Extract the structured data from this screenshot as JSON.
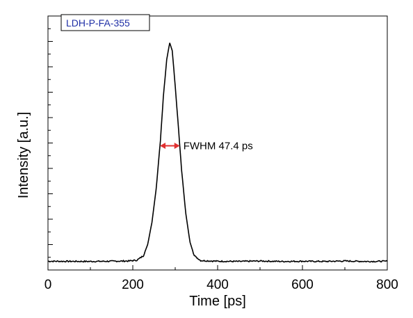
{
  "chart_data": {
    "type": "line",
    "title": "",
    "xlabel": "Time [ps]",
    "ylabel": "Intensity [a.u.]",
    "xlim": [
      0,
      800
    ],
    "ylim": [
      0,
      1
    ],
    "x_ticks": [
      0,
      200,
      400,
      600,
      800
    ],
    "x_tick_labels": [
      "0",
      "200",
      "400",
      "600",
      "800"
    ],
    "y_tick_labels_shown": false,
    "y_log_scale": false,
    "grid": false,
    "legend_box": {
      "text": "LDH-P-FA-355",
      "placement": "top-left",
      "text_color": "#1f2fa6"
    },
    "annotation": {
      "text": "FWHM 47.4 ps",
      "arrow_color": "#e03030",
      "x_start": 264,
      "x_end": 311,
      "y": 0.5
    },
    "series": [
      {
        "color": "#000000",
        "x": [
          0,
          100,
          150,
          190,
          210,
          225,
          235,
          245,
          255,
          265,
          272,
          280,
          287,
          293,
          300,
          308,
          315,
          325,
          335,
          345,
          360,
          400,
          450,
          500,
          550,
          600,
          650,
          700,
          750,
          800
        ],
        "y": [
          0.005,
          0.004,
          0.005,
          0.006,
          0.01,
          0.03,
          0.08,
          0.18,
          0.33,
          0.55,
          0.75,
          0.92,
          0.995,
          0.96,
          0.8,
          0.6,
          0.42,
          0.22,
          0.09,
          0.03,
          0.008,
          0.005,
          0.004,
          0.006,
          0.004,
          0.005,
          0.004,
          0.006,
          0.004,
          0.005
        ]
      }
    ]
  }
}
